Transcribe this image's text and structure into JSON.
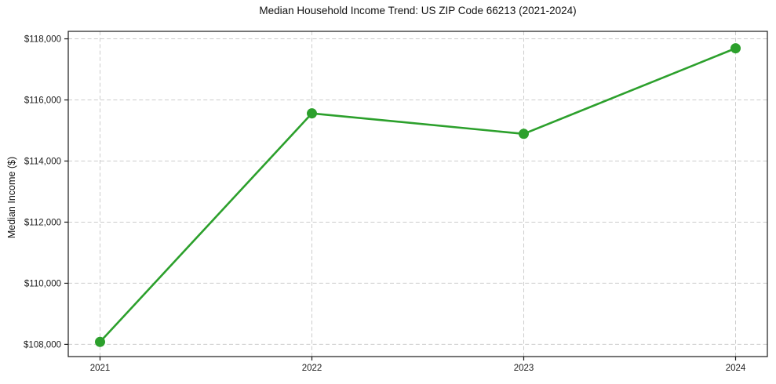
{
  "figure": {
    "background_color": "#ffffff"
  },
  "chart_data": {
    "type": "line",
    "title": "Median Household Income Trend: US ZIP Code 66213 (2021-2024)",
    "xlabel": "",
    "ylabel": "Median Income ($)",
    "x": [
      2021,
      2022,
      2023,
      2024
    ],
    "values": [
      108080,
      115560,
      114890,
      117690
    ],
    "x_tick_labels": [
      "2021",
      "2022",
      "2023",
      "2024"
    ],
    "y_tick_values": [
      108000,
      110000,
      112000,
      114000,
      116000,
      118000
    ],
    "y_tick_labels": [
      "$108,000",
      "$110,000",
      "$112,000",
      "$114,000",
      "$116,000",
      "$118,000"
    ],
    "xlim": [
      2020.85,
      2024.15
    ],
    "ylim": [
      107600,
      118245
    ],
    "legend": "none",
    "grid": {
      "visible": true,
      "axis": "both",
      "linestyle": "dashed",
      "color": "#cccccc"
    },
    "line_color": "#2ca02c",
    "marker_color": "#2ca02c",
    "marker_shape": "circle",
    "spine_color": "#1a1a1a",
    "tick_color": "#1a1a1a",
    "text_color": "#1a1a1a"
  }
}
